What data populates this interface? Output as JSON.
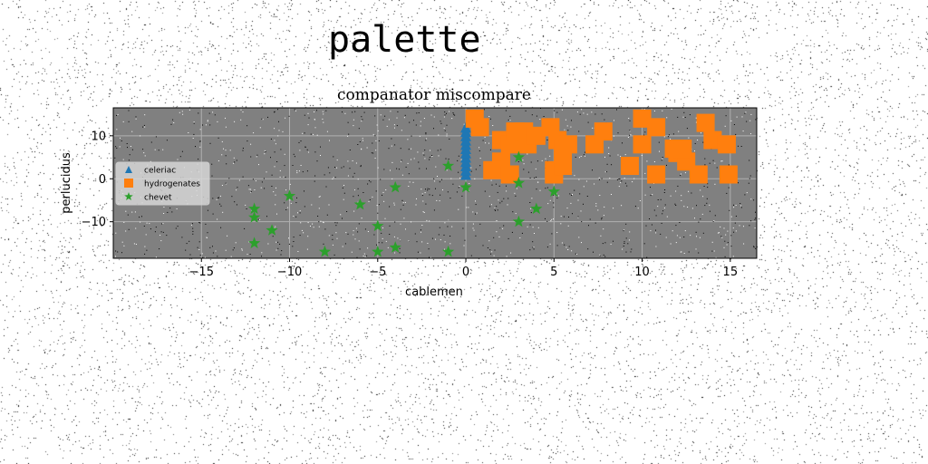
{
  "page": {
    "title": "palette"
  },
  "chart_data": {
    "type": "scatter",
    "title": "companator miscompare",
    "xlabel": "cablemen",
    "ylabel": "perlucidus",
    "xlim": [
      -20,
      16.5
    ],
    "ylim": [
      -18.5,
      16.5
    ],
    "xticks": [
      -15,
      -10,
      -5,
      0,
      5,
      10,
      15
    ],
    "yticks": [
      -10,
      0,
      10
    ],
    "grid": true,
    "legend_position": "center-left",
    "colors": {
      "plot_background": "#808080",
      "grid": "#b0b0b0"
    },
    "series": [
      {
        "name": "celeriac",
        "marker": "triangle",
        "color": "#1f77b4",
        "x": [
          0,
          0,
          0,
          0,
          0,
          0,
          0,
          0,
          0,
          0,
          0,
          0
        ],
        "y": [
          1,
          2,
          3,
          4,
          5,
          6,
          7,
          8,
          9,
          10,
          11,
          12
        ]
      },
      {
        "name": "hydrogenates",
        "marker": "square",
        "color": "#ff7f0e",
        "x": [
          0.5,
          0.8,
          2,
          2,
          1.5,
          2.5,
          2.8,
          2.5,
          3.5,
          3.3,
          4,
          4.8,
          5.2,
          5.5,
          5.8,
          5,
          5,
          5.5,
          7.3,
          7.8,
          9.3,
          10,
          10,
          10.8,
          10.8,
          11.8,
          12,
          12.5,
          12.3,
          13.2,
          13.6,
          14,
          14.8,
          14.9
        ],
        "y": [
          14,
          12,
          9,
          4,
          2,
          8,
          11,
          1,
          8,
          11,
          10,
          12,
          9,
          7,
          8,
          2,
          1,
          3,
          8,
          11,
          3,
          14,
          8,
          12,
          1,
          7,
          6,
          4,
          7,
          1,
          13,
          9,
          8,
          1
        ]
      },
      {
        "name": "chevet",
        "marker": "star",
        "color": "#2ca02c",
        "x": [
          -12,
          -12,
          -12,
          -11,
          -10,
          -8,
          -6,
          -5,
          -5,
          -4,
          -4,
          -1,
          -1,
          0,
          3,
          3,
          3,
          4,
          5
        ],
        "y": [
          -7,
          -9,
          -15,
          -12,
          -4,
          -17,
          -6,
          -11,
          -17,
          -16,
          -2,
          3,
          -17,
          -2,
          5,
          -1,
          -10,
          -7,
          -3
        ]
      }
    ]
  }
}
